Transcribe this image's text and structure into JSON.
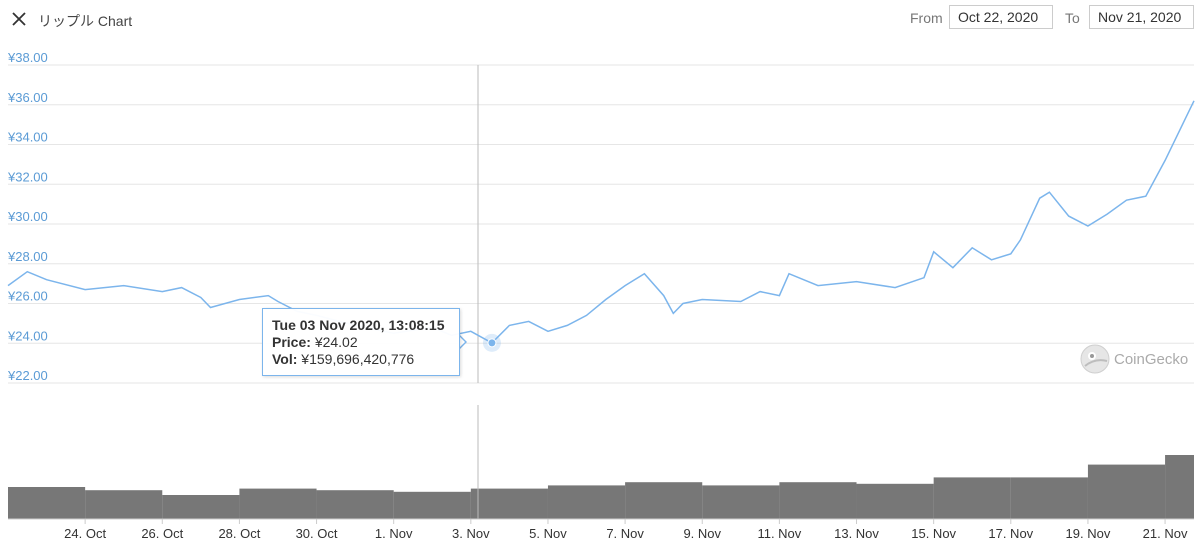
{
  "header": {
    "title": "リップル Chart",
    "from_label": "From",
    "from_value": "Oct 22, 2020",
    "to_label": "To",
    "to_value": "Nov 21, 2020"
  },
  "tooltip": {
    "date": "Tue 03 Nov 2020, 13:08:15",
    "price_label": "Price:",
    "price_value": "¥24.02",
    "vol_label": "Vol:",
    "vol_value": "¥159,696,420,776"
  },
  "logo": {
    "text": "CoinGecko"
  },
  "colors": {
    "line": "#7cb5ec",
    "tooltip_border": "#7cb5ec",
    "ytick": "#5b9bd5",
    "volume": "#555555"
  },
  "icons": {
    "close": "close-icon",
    "logo": "gecko-logo-icon"
  },
  "chart_data": [
    {
      "type": "line",
      "series": [
        {
          "x": [
            "2020-10-22",
            "2020-10-22 12:00",
            "2020-10-23",
            "2020-10-24",
            "2020-10-25",
            "2020-10-26",
            "2020-10-26 12:00",
            "2020-10-27",
            "2020-10-27 06:00",
            "2020-10-28",
            "2020-10-28 18:00",
            "2020-10-29",
            "2020-10-29 12:00",
            "2020-10-30",
            "2020-10-31",
            "2020-11-01",
            "2020-11-02",
            "2020-11-02 12:00",
            "2020-11-03",
            "2020-11-03 13:08",
            "2020-11-04",
            "2020-11-04 12:00",
            "2020-11-05",
            "2020-11-05 12:00",
            "2020-11-06",
            "2020-11-06 12:00",
            "2020-11-07",
            "2020-11-07 12:00",
            "2020-11-08",
            "2020-11-08 06:00",
            "2020-11-08 12:00",
            "2020-11-09",
            "2020-11-10",
            "2020-11-10 12:00",
            "2020-11-11",
            "2020-11-11 06:00",
            "2020-11-12",
            "2020-11-13",
            "2020-11-14",
            "2020-11-14 18:00",
            "2020-11-15",
            "2020-11-15 12:00",
            "2020-11-16",
            "2020-11-16 12:00",
            "2020-11-17",
            "2020-11-17 06:00",
            "2020-11-17 18:00",
            "2020-11-18",
            "2020-11-18 12:00",
            "2020-11-19",
            "2020-11-19 12:00",
            "2020-11-20",
            "2020-11-20 12:00",
            "2020-11-21",
            "2020-11-21 12:00",
            "2020-11-21 18:00"
          ],
          "y": [
            26.9,
            27.6,
            27.2,
            26.7,
            26.9,
            26.6,
            26.8,
            26.3,
            25.8,
            26.2,
            26.4,
            26.1,
            25.6,
            25.4,
            24.9,
            24.5,
            24.8,
            24.4,
            24.6,
            24.02,
            24.9,
            25.1,
            24.6,
            24.9,
            25.4,
            26.2,
            26.9,
            27.5,
            26.4,
            25.5,
            26.0,
            26.2,
            26.1,
            26.6,
            26.4,
            27.5,
            26.9,
            27.1,
            26.8,
            27.3,
            28.6,
            27.8,
            28.8,
            28.2,
            28.5,
            29.2,
            31.3,
            31.6,
            30.4,
            29.9,
            30.5,
            31.2,
            31.4,
            33.2,
            35.2,
            36.2
          ]
        }
      ],
      "ylim": [
        22,
        38
      ],
      "y_ticks": [
        "¥22.00",
        "¥24.00",
        "¥26.00",
        "¥28.00",
        "¥30.00",
        "¥32.00",
        "¥34.00",
        "¥36.00",
        "¥38.00"
      ],
      "x_ticks": [
        "24. Oct",
        "26. Oct",
        "28. Oct",
        "30. Oct",
        "1. Nov",
        "3. Nov",
        "5. Nov",
        "7. Nov",
        "9. Nov",
        "11. Nov",
        "13. Nov",
        "15. Nov",
        "17. Nov",
        "19. Nov",
        "21. Nov"
      ],
      "grid": true,
      "legend": false
    },
    {
      "type": "bar",
      "series": [
        {
          "x": [
            "2020-10-22",
            "2020-10-24",
            "2020-10-26",
            "2020-10-28",
            "2020-10-30",
            "2020-11-01",
            "2020-11-03",
            "2020-11-05",
            "2020-11-07",
            "2020-11-09",
            "2020-11-11",
            "2020-11-13",
            "2020-11-15",
            "2020-11-17",
            "2020-11-19",
            "2020-11-21"
          ],
          "values": [
            1.0,
            0.9,
            0.75,
            0.95,
            0.9,
            0.85,
            0.95,
            1.05,
            1.15,
            1.05,
            1.15,
            1.1,
            1.3,
            1.3,
            1.7,
            2.0
          ]
        }
      ],
      "grid": false,
      "legend": false
    }
  ]
}
